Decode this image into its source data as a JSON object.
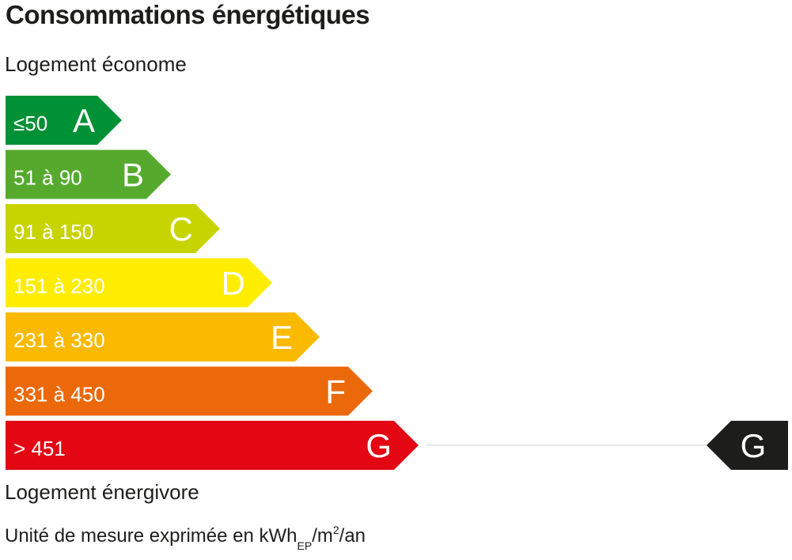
{
  "title": "Consommations énergétiques",
  "label_top": "Logement économe",
  "label_bottom": "Logement énergivore",
  "unit": {
    "prefix": "Unité de mesure exprimée en kWh",
    "sub": "EP",
    "mid": "/m",
    "sup": "2",
    "suffix": "/an"
  },
  "chart_data": {
    "type": "bar",
    "orientation": "horizontal",
    "classes": [
      {
        "letter": "A",
        "range": "≤50",
        "color": "#009036"
      },
      {
        "letter": "B",
        "range": "51 à 90",
        "color": "#55aa2e"
      },
      {
        "letter": "C",
        "range": "91 à 150",
        "color": "#c8d400"
      },
      {
        "letter": "D",
        "range": "151 à 230",
        "color": "#ffed00"
      },
      {
        "letter": "E",
        "range": "231 à 330",
        "color": "#fbba00"
      },
      {
        "letter": "F",
        "range": "331 à 450",
        "color": "#eb690b"
      },
      {
        "letter": "G",
        "range": "> 451",
        "color": "#e30613"
      }
    ],
    "indicator": {
      "letter": "G",
      "color": "#1d1d1b"
    }
  }
}
